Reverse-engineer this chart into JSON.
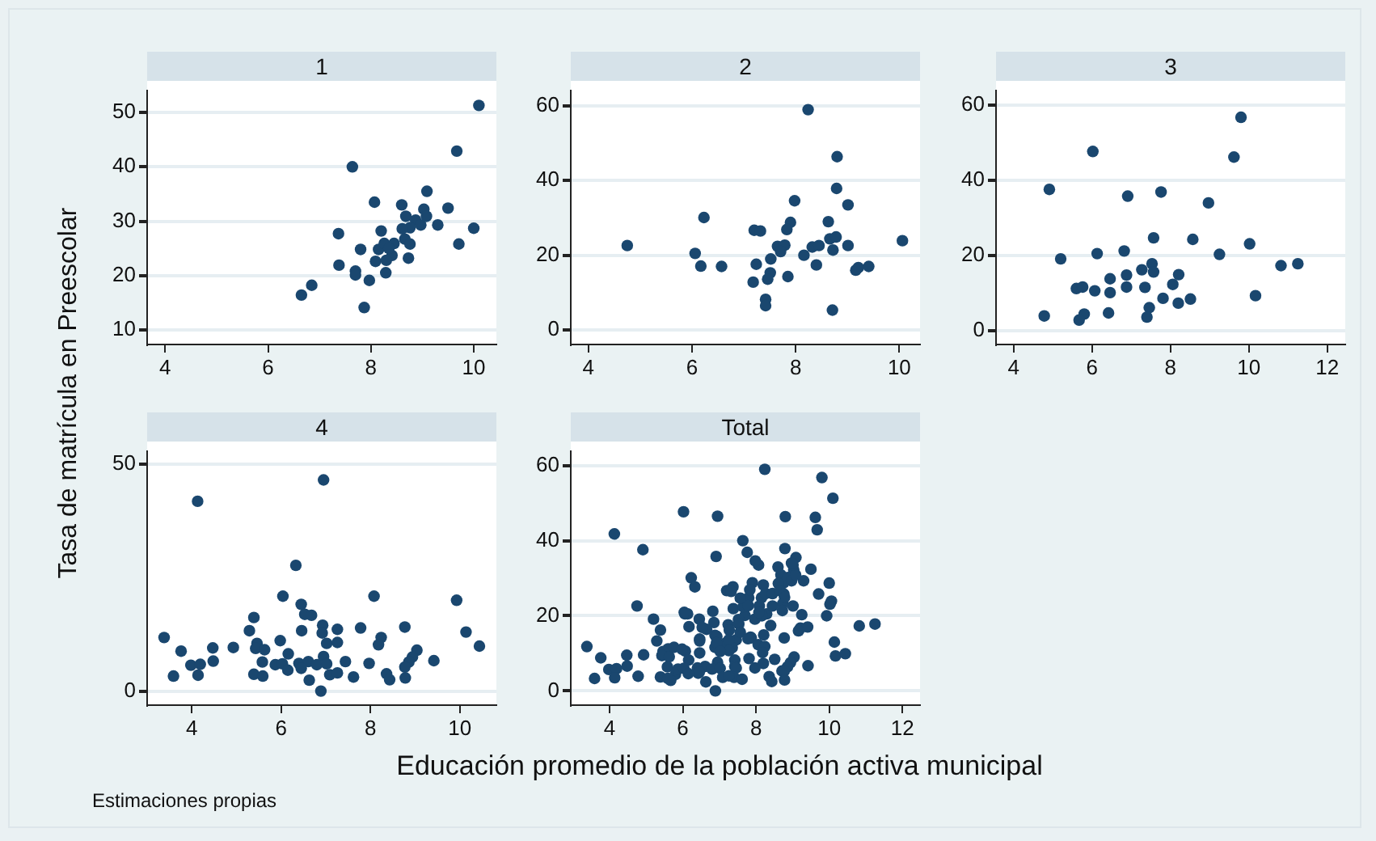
{
  "chart_data": [
    {
      "type": "scatter",
      "title": "1",
      "ylabel": "Tasa de matrícula en Preescolar",
      "color": "#1a476f",
      "marker": "circle",
      "grid": "y",
      "xlim": [
        3.65,
        10.44
      ],
      "xticks": [
        4,
        6,
        8,
        10
      ],
      "ylim": [
        7.3,
        54.1
      ],
      "yticks": [
        10,
        20,
        30,
        40,
        50
      ],
      "x": [
        10.1,
        9.67,
        7.64,
        9.09,
        8.07,
        8.6,
        9.03,
        9.5,
        9.3,
        10.0,
        7.37,
        8.2,
        8.68,
        8.87,
        8.76,
        8.61,
        8.97,
        7.8,
        8.15,
        8.26,
        8.45,
        8.66,
        8.76,
        9.71,
        8.73,
        8.41,
        8.09,
        8.3,
        7.38,
        7.7,
        7.7,
        8.29,
        7.97,
        6.85,
        6.65,
        7.87,
        8.35,
        9.08
      ],
      "values": [
        51.3,
        42.9,
        40,
        35.5,
        33.5,
        33,
        32.2,
        32.4,
        29.3,
        28.7,
        27.7,
        28.2,
        30.9,
        30.2,
        28.8,
        28.6,
        29.3,
        24.8,
        24.8,
        25.9,
        25.9,
        26.7,
        25.8,
        25.8,
        23.2,
        23.7,
        22.6,
        22.8,
        21.9,
        20.8,
        20.1,
        20.5,
        19.1,
        18.2,
        16.4,
        14.1,
        25,
        30.9
      ]
    },
    {
      "type": "scatter",
      "title": "2",
      "color": "#1a476f",
      "marker": "circle",
      "grid": "y",
      "xlim": [
        3.66,
        10.4
      ],
      "xticks": [
        4,
        6,
        8,
        10
      ],
      "ylim": [
        -3.9,
        64.2
      ],
      "yticks": [
        0,
        20,
        40,
        60
      ],
      "x": [
        8.24,
        8.8,
        8.79,
        9.01,
        7.98,
        6.23,
        7.9,
        8.63,
        7.2,
        7.32,
        7.83,
        4.75,
        6.06,
        7.65,
        7.79,
        7.71,
        8.32,
        8.45,
        8.66,
        8.78,
        8.72,
        9.01,
        10.06,
        8.16,
        6.17,
        6.57,
        7.24,
        7.52,
        8.4,
        9.21,
        9.41,
        9.16,
        7.51,
        7.46,
        7.85,
        7.18,
        7.42,
        7.42,
        8.71
      ],
      "values": [
        59,
        46.4,
        37.9,
        33.5,
        34.6,
        30.1,
        28.8,
        29,
        26.7,
        26.5,
        26.9,
        22.6,
        20.5,
        22.4,
        22.7,
        21,
        22.2,
        22.6,
        24.4,
        24.9,
        21.4,
        22.6,
        23.9,
        20,
        17.1,
        17,
        17.6,
        19,
        17.4,
        16.7,
        17,
        16,
        15.3,
        13.6,
        14.3,
        12.8,
        8.2,
        6.5,
        5.3
      ]
    },
    {
      "type": "scatter",
      "title": "3",
      "color": "#1a476f",
      "marker": "circle",
      "grid": "y",
      "xlim": [
        3.55,
        12.46
      ],
      "xticks": [
        4,
        6,
        8,
        10,
        12
      ],
      "ylim": [
        -3.7,
        64
      ],
      "yticks": [
        0,
        20,
        40,
        60
      ],
      "x": [
        9.8,
        6.02,
        9.62,
        4.91,
        6.91,
        7.76,
        8.97,
        7.57,
        8.57,
        6.82,
        6.13,
        9.25,
        10.02,
        5.2,
        10.82,
        11.25,
        7.53,
        7.27,
        7.57,
        8.21,
        6.88,
        6.46,
        8.06,
        7.35,
        6.88,
        5.6,
        5.76,
        6.07,
        6.46,
        10.17,
        7.81,
        8.51,
        8.2,
        7.46,
        6.42,
        4.78,
        5.8,
        7.4,
        5.67
      ],
      "values": [
        56.8,
        47.7,
        46.2,
        37.6,
        35.8,
        36.9,
        34,
        24.7,
        24.3,
        21.2,
        20.5,
        20.3,
        23.1,
        19.1,
        17.3,
        17.8,
        17.8,
        16.2,
        15.6,
        14.9,
        14.8,
        13.8,
        12.3,
        11.5,
        11.6,
        11.2,
        11.6,
        10.6,
        10.1,
        9.3,
        8.6,
        8.4,
        7.3,
        6.1,
        4.7,
        3.9,
        4.4,
        3.6,
        2.8
      ]
    },
    {
      "type": "scatter",
      "title": "4",
      "color": "#1a476f",
      "marker": "circle",
      "grid": "y",
      "xlim": [
        3.0,
        10.82
      ],
      "xticks": [
        4,
        6,
        8,
        10
      ],
      "ylim": [
        -3.1,
        52.9
      ],
      "yticks": [
        0,
        50
      ],
      "x": [
        6.95,
        4.13,
        6.33,
        6.04,
        8.08,
        9.93,
        6.45,
        6.53,
        6.68,
        5.39,
        6.93,
        7.26,
        7.78,
        8.77,
        5.29,
        6.46,
        6.92,
        10.14,
        3.38,
        8.24,
        5.98,
        5.46,
        7.26,
        7.02,
        8.18,
        10.44,
        3.76,
        4.47,
        4.93,
        5.43,
        5.63,
        9.04,
        6.16,
        8.94,
        6.95,
        4.48,
        5.58,
        7.44,
        9.42,
        7.97,
        8.86,
        3.98,
        4.19,
        5.87,
        6.03,
        6.4,
        6.61,
        6.8,
        7.02,
        6.45,
        6.15,
        8.77,
        5.39,
        5.59,
        3.59,
        4.14,
        7.09,
        7.26,
        7.62,
        8.36,
        8.43,
        8.78,
        6.63,
        6.89
      ],
      "values": [
        46.5,
        41.8,
        27.7,
        20.9,
        20.9,
        20,
        19.1,
        16.9,
        16.7,
        16.2,
        14.5,
        13.6,
        13.9,
        14.1,
        13.3,
        13.3,
        12.8,
        13,
        11.8,
        11.8,
        11.1,
        10.5,
        10.7,
        10.5,
        10.2,
        9.9,
        8.8,
        9.5,
        9.6,
        9.4,
        9.1,
        9,
        8.2,
        7.5,
        7.6,
        6.6,
        6.4,
        6.5,
        6.7,
        6.1,
        6.4,
        5.7,
        5.9,
        5.8,
        6,
        6.1,
        6.5,
        5.8,
        6,
        5,
        4.6,
        5.3,
        3.7,
        3.3,
        3.3,
        3.5,
        3.6,
        4,
        3.1,
        3.8,
        2.5,
        2.9,
        2.4,
        0
      ]
    },
    {
      "type": "scatter",
      "title": "Total",
      "xlabel": "Educación promedio de la población activa municipal",
      "annotations": [
        "Estimaciones propias"
      ],
      "color": "#1a476f",
      "marker": "circle",
      "grid": "y",
      "xlim": [
        2.94,
        12.48
      ],
      "xticks": [
        4,
        6,
        8,
        10,
        12
      ],
      "ylim": [
        -3.8,
        63.9
      ],
      "yticks": [
        0,
        20,
        40,
        60
      ],
      "x": [
        10.1,
        9.67,
        7.64,
        9.09,
        8.07,
        8.6,
        9.03,
        9.5,
        9.3,
        10.0,
        7.37,
        8.2,
        8.68,
        8.87,
        8.76,
        8.61,
        8.97,
        7.8,
        8.15,
        8.26,
        8.45,
        8.66,
        8.76,
        9.71,
        8.73,
        8.09,
        7.38,
        7.7,
        8.29,
        7.97,
        6.85,
        6.65,
        7.87,
        9.08,
        8.24,
        8.8,
        8.79,
        9.01,
        7.98,
        6.23,
        7.9,
        7.2,
        7.32,
        7.83,
        4.75,
        6.06,
        7.65,
        7.79,
        8.45,
        8.78,
        8.72,
        9.01,
        10.06,
        8.16,
        6.17,
        7.24,
        7.52,
        8.4,
        9.21,
        9.41,
        9.16,
        7.46,
        7.85,
        7.18,
        7.42,
        7.42,
        8.71,
        9.8,
        6.02,
        9.62,
        4.91,
        6.91,
        7.76,
        8.97,
        7.57,
        6.82,
        6.13,
        9.25,
        10.02,
        5.2,
        10.82,
        11.25,
        7.53,
        7.27,
        7.57,
        8.21,
        6.88,
        6.46,
        8.06,
        7.35,
        6.88,
        5.6,
        5.76,
        6.07,
        6.46,
        10.17,
        7.81,
        8.51,
        8.2,
        7.46,
        6.42,
        4.78,
        5.8,
        7.4,
        5.67,
        6.95,
        4.13,
        6.33,
        6.04,
        8.08,
        9.93,
        6.45,
        6.53,
        5.39,
        6.93,
        7.26,
        7.78,
        8.77,
        5.29,
        6.46,
        6.92,
        10.14,
        3.38,
        8.24,
        5.98,
        5.46,
        7.26,
        7.02,
        8.18,
        10.44,
        3.76,
        4.47,
        4.93,
        5.43,
        5.63,
        9.04,
        6.16,
        8.94,
        6.95,
        4.48,
        5.58,
        9.42,
        7.97,
        8.86,
        3.98,
        4.19,
        5.87,
        6.03,
        6.4,
        6.61,
        6.8,
        7.02,
        6.45,
        6.15,
        8.77,
        5.39,
        5.59,
        3.59,
        4.14,
        7.09,
        7.26,
        7.62,
        8.36,
        8.43,
        8.78,
        6.63,
        6.89
      ],
      "values": [
        51.3,
        42.9,
        40,
        35.5,
        33.5,
        33,
        32.2,
        32.4,
        29.3,
        28.7,
        27.7,
        28.2,
        30.9,
        30.2,
        28.8,
        28.6,
        29.3,
        24.8,
        24.8,
        25.9,
        25.9,
        26.7,
        25.8,
        25.8,
        23.2,
        22.6,
        21.9,
        20.1,
        20.5,
        19.1,
        18.2,
        16.4,
        14.1,
        30.9,
        59,
        46.4,
        37.9,
        33.5,
        34.6,
        30.1,
        28.8,
        26.7,
        26.5,
        26.9,
        22.6,
        20.5,
        22.4,
        22.7,
        22.6,
        24.9,
        21.4,
        22.6,
        23.9,
        20,
        17.1,
        17.6,
        19,
        17.4,
        16.7,
        17,
        16,
        13.6,
        14.3,
        12.8,
        8.2,
        6.5,
        5.3,
        56.8,
        47.7,
        46.2,
        37.6,
        35.8,
        36.9,
        34,
        24.7,
        21.2,
        20.5,
        20.3,
        23.1,
        19.1,
        17.3,
        17.8,
        17.8,
        16.2,
        15.6,
        14.9,
        14.8,
        13.8,
        12.3,
        11.5,
        11.6,
        11.2,
        11.6,
        10.6,
        10.1,
        9.3,
        8.6,
        8.4,
        7.3,
        6.1,
        4.7,
        3.9,
        4.4,
        3.6,
        2.8,
        46.5,
        41.8,
        27.7,
        20.9,
        20.9,
        20,
        19.1,
        16.9,
        16.2,
        14.5,
        13.6,
        13.9,
        14.1,
        13.3,
        13.3,
        12.8,
        13,
        11.8,
        11.8,
        11.1,
        10.5,
        10.7,
        10.5,
        10.2,
        9.9,
        8.8,
        9.5,
        9.6,
        9.4,
        9.1,
        9,
        8.2,
        7.5,
        7.6,
        6.6,
        6.4,
        6.7,
        6.1,
        6.4,
        5.7,
        5.9,
        5.8,
        6,
        6.1,
        6.5,
        5.8,
        6,
        5,
        4.6,
        5.3,
        3.7,
        3.3,
        3.3,
        3.5,
        3.6,
        4,
        3.1,
        3.8,
        2.5,
        2.9,
        2.4,
        0
      ]
    }
  ]
}
